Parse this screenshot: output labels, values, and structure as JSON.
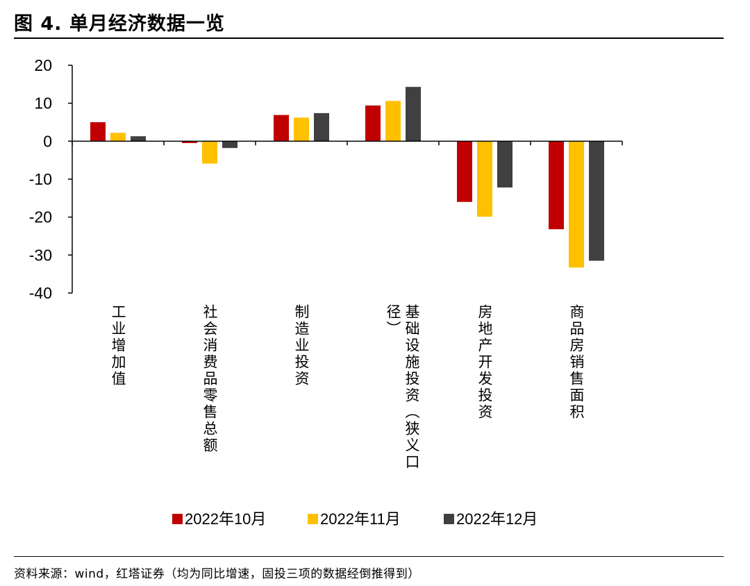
{
  "figure": {
    "title": "图 4. 单月经济数据一览",
    "source": "资料来源：wind，红塔证券（均为同比增速，固投三项的数据经倒推得到）"
  },
  "chart_data": {
    "type": "bar",
    "title": "图 4. 单月经济数据一览",
    "xlabel": "",
    "ylabel": "",
    "ylim": [
      -40,
      20
    ],
    "yticks": [
      20,
      10,
      0,
      -10,
      -20,
      -30,
      -40
    ],
    "ytick_labels": [
      "20",
      "10",
      "0",
      "-10",
      "-20",
      "-30",
      "-40"
    ],
    "grid": false,
    "legend_position": "bottom-center",
    "categories": [
      "工业增加值",
      "社会消费品零售总额",
      "制造业投资",
      "基础设施投资（狭义口径）",
      "房地产开发投资",
      "商品房销售面积"
    ],
    "series": [
      {
        "name": "2022年10月",
        "color": "#c00000",
        "values": [
          5.0,
          -0.5,
          6.9,
          9.4,
          -16.0,
          -23.2
        ]
      },
      {
        "name": "2022年11月",
        "color": "#ffc000",
        "values": [
          2.2,
          -5.9,
          6.2,
          10.6,
          -19.9,
          -33.3
        ]
      },
      {
        "name": "2022年12月",
        "color": "#404040",
        "values": [
          1.3,
          -1.8,
          7.4,
          14.3,
          -12.2,
          -31.5
        ]
      }
    ]
  }
}
